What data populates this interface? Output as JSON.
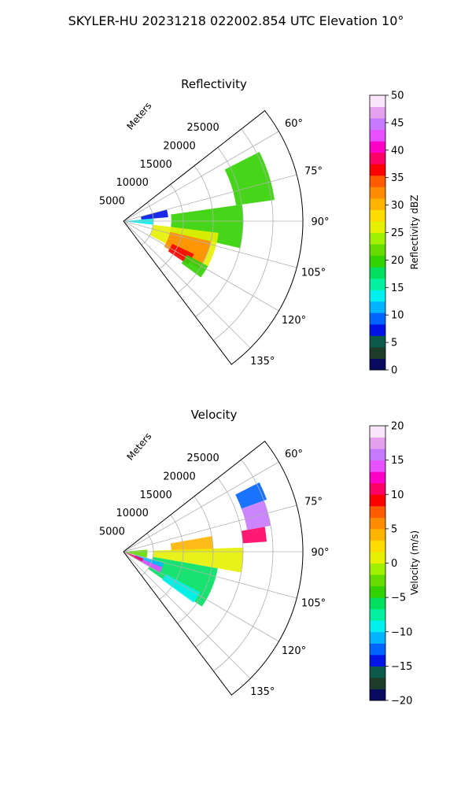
{
  "figure_title": "SKYLER-HU  20231218  022002.854 UTC Elevation 10°",
  "chart_data": [
    {
      "type": "heatmap",
      "projection": "polar-sector",
      "title": "Reflectivity",
      "radial_axis_label": "Meters",
      "radial_ticks": [
        5000,
        10000,
        15000,
        20000,
        25000
      ],
      "radial_tick_labels": [
        "5000",
        "10000",
        "15000",
        "20000",
        "25000"
      ],
      "radial_range": [
        0,
        30000
      ],
      "azimuth_range_deg": [
        52,
        143
      ],
      "azimuth_ticks": [
        60,
        75,
        90,
        105,
        120,
        135
      ],
      "azimuth_tick_labels": [
        "60°",
        "75°",
        "90°",
        "105°",
        "120°",
        "135°"
      ],
      "grid": true,
      "colorbar": {
        "label": "Reflectivity dBZ",
        "range": [
          0,
          50
        ],
        "ticks": [
          0,
          5,
          10,
          15,
          20,
          25,
          30,
          35,
          40,
          45,
          50
        ],
        "tick_labels": [
          "0",
          "5",
          "10",
          "15",
          "20",
          "25",
          "30",
          "35",
          "40",
          "45",
          "50"
        ],
        "colors": [
          "#0a0a60",
          "#1e3c2a",
          "#0b5a4a",
          "#0014e6",
          "#0064ff",
          "#00b4ff",
          "#00f0f0",
          "#00f0a0",
          "#00e060",
          "#32d200",
          "#64dc00",
          "#a0f000",
          "#e6f000",
          "#ffdc00",
          "#ffb400",
          "#ff8c00",
          "#ff5a00",
          "#ff0000",
          "#ff0064",
          "#ff00c8",
          "#e650ff",
          "#c878ff",
          "#e6a0f0",
          "#fae6fa"
        ]
      },
      "echo_regions": [
        {
          "az": [
            63,
            82
          ],
          "r": [
            19000,
            25500
          ],
          "value": 20
        },
        {
          "az": [
            82,
            103
          ],
          "r": [
            8000,
            20000
          ],
          "value": 20
        },
        {
          "az": [
            97,
            118
          ],
          "r": [
            5000,
            16000
          ],
          "value": 27
        },
        {
          "az": [
            103,
            122
          ],
          "r": [
            8000,
            15000
          ],
          "value": 32
        },
        {
          "az": [
            115,
            124
          ],
          "r": [
            9000,
            13000
          ],
          "value": 37
        },
        {
          "az": [
            85,
            97
          ],
          "r": [
            0,
            5000
          ],
          "value": 14
        },
        {
          "az": [
            75,
            85
          ],
          "r": [
            3000,
            7500
          ],
          "value": 8
        },
        {
          "az": [
            118,
            126
          ],
          "r": [
            12000,
            16000
          ],
          "value": 20
        }
      ]
    },
    {
      "type": "heatmap",
      "projection": "polar-sector",
      "title": "Velocity",
      "radial_axis_label": "Meters",
      "radial_ticks": [
        5000,
        10000,
        15000,
        20000,
        25000
      ],
      "radial_tick_labels": [
        "5000",
        "10000",
        "15000",
        "20000",
        "25000"
      ],
      "radial_range": [
        0,
        30000
      ],
      "azimuth_range_deg": [
        52,
        143
      ],
      "azimuth_ticks": [
        60,
        75,
        90,
        105,
        120,
        135
      ],
      "azimuth_tick_labels": [
        "60°",
        "75°",
        "90°",
        "105°",
        "120°",
        "135°"
      ],
      "grid": true,
      "colorbar": {
        "label": "Velocity (m/s)",
        "range": [
          -20,
          20
        ],
        "ticks": [
          -20,
          -15,
          -10,
          -5,
          0,
          5,
          10,
          15,
          20
        ],
        "tick_labels": [
          "−20",
          "−15",
          "−10",
          "−5",
          "0",
          "5",
          "10",
          "15",
          "20"
        ],
        "colors": [
          "#0a0a60",
          "#1e3c2a",
          "#0b5a4a",
          "#0014e6",
          "#0064ff",
          "#00b4ff",
          "#00f0f0",
          "#00f0a0",
          "#00e060",
          "#32d200",
          "#64dc00",
          "#a0f000",
          "#e6f000",
          "#ffdc00",
          "#ffb400",
          "#ff8c00",
          "#ff5a00",
          "#ff0000",
          "#ff0064",
          "#ff00c8",
          "#e650ff",
          "#c878ff",
          "#e6a0f0",
          "#fae6fa"
        ]
      },
      "echo_regions": [
        {
          "az": [
            63,
            70
          ],
          "r": [
            21000,
            25500
          ],
          "value": -12
        },
        {
          "az": [
            70,
            80
          ],
          "r": [
            21000,
            25000
          ],
          "value": 16
        },
        {
          "az": [
            80,
            86
          ],
          "r": [
            20000,
            24000
          ],
          "value": 10
        },
        {
          "az": [
            80,
            90
          ],
          "r": [
            8000,
            15000
          ],
          "value": 4
        },
        {
          "az": [
            88,
            100
          ],
          "r": [
            5000,
            20000
          ],
          "value": 1
        },
        {
          "az": [
            100,
            125
          ],
          "r": [
            5000,
            16000
          ],
          "value": -6
        },
        {
          "az": [
            118,
            126
          ],
          "r": [
            8000,
            14500
          ],
          "value": -9
        },
        {
          "az": [
            106,
            118
          ],
          "r": [
            2000,
            7000
          ],
          "value": -11
        },
        {
          "az": [
            112,
            120
          ],
          "r": [
            2000,
            7000
          ],
          "value": 14
        },
        {
          "az": [
            109,
            118
          ],
          "r": [
            500,
            3500
          ],
          "value": 10
        },
        {
          "az": [
            85,
            105
          ],
          "r": [
            0,
            4000
          ],
          "value": -3
        }
      ]
    }
  ]
}
